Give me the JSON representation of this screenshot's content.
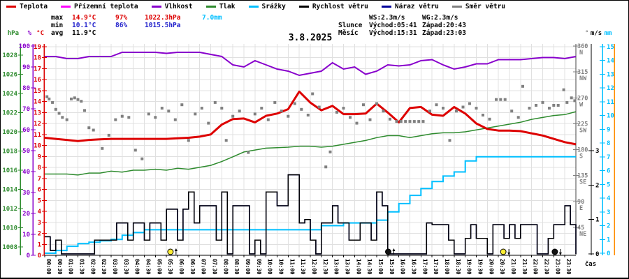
{
  "title": "3.8.2025",
  "colors": {
    "temperature": "#dd0000",
    "ground_temperature": "#ff00ff",
    "humidity": "#8800cc",
    "pressure": "#2e8b2e",
    "precipitation": "#00bfff",
    "wind_speed": "#000000",
    "wind_gust": "#000099",
    "wind_direction": "#808080",
    "grid": "#e0e0e0",
    "axis_orange": "#ff8c00",
    "sun_marker": "#ffee33",
    "moon_marker": "#111111",
    "max_stat": "#dd0000",
    "min_stat": "#2222cc"
  },
  "legend": {
    "items": [
      {
        "key": "temperature",
        "label": "Teplota",
        "color": "#dd0000"
      },
      {
        "key": "ground-temperature",
        "label": "Přízemní teplota",
        "color": "#ff00ff"
      },
      {
        "key": "humidity",
        "label": "Vlhkost",
        "color": "#8800cc"
      },
      {
        "key": "pressure",
        "label": "Tlak",
        "color": "#2e8b2e"
      },
      {
        "key": "precipitation",
        "label": "Srážky",
        "color": "#00bfff"
      },
      {
        "key": "wind-speed",
        "label": "Rychlost větru",
        "color": "#000000"
      },
      {
        "key": "wind-gust",
        "label": "Náraz větru",
        "color": "#000099"
      },
      {
        "key": "wind-direction",
        "label": "Směr větru",
        "color": "#808080"
      }
    ]
  },
  "stats": {
    "max": {
      "label": "max",
      "temp": "14.9°C",
      "rh": "97%",
      "pressure": "1022.3hPa",
      "precip": "7.0mm"
    },
    "min": {
      "label": "min",
      "temp": "10.1°C",
      "rh": "86%",
      "pressure": "1015.5hPa"
    },
    "avg": {
      "label": "avg",
      "temp": "11.9°C"
    },
    "wind": {
      "ws": "WS:2.3m/s",
      "wg": "WG:2.3m/s"
    },
    "sun": {
      "label": "Slunce",
      "rise": "Východ:05:41",
      "set": "Západ:20:43"
    },
    "moon": {
      "label": "Měsíc",
      "rise": "Východ:15:31",
      "set": "Západ:23:03"
    }
  },
  "axes": {
    "pressure": {
      "header": "hPa",
      "ticks": [
        "1008",
        "1010",
        "1012",
        "1014",
        "1016",
        "1018",
        "1020",
        "1022",
        "1024",
        "1026",
        "1028"
      ]
    },
    "humidity": {
      "header": "%",
      "ticks": [
        "0",
        "10",
        "20",
        "30",
        "40",
        "50",
        "60",
        "70",
        "80",
        "90",
        "100"
      ]
    },
    "temperature": {
      "header": "°C",
      "ticks": [
        "0",
        "1",
        "2",
        "3",
        "4",
        "5",
        "6",
        "7",
        "8",
        "9",
        "10",
        "11",
        "12",
        "13",
        "14",
        "15",
        "16",
        "17",
        "18",
        "19"
      ]
    },
    "direction": {
      "header": "°",
      "ticks": [
        {
          "value": 360,
          "label": "360",
          "compass": "N"
        },
        {
          "value": 315,
          "label": "315",
          "compass": "NW"
        },
        {
          "value": 270,
          "label": "270",
          "compass": "W"
        },
        {
          "value": 225,
          "label": "225",
          "compass": "SW"
        },
        {
          "value": 180,
          "label": "180",
          "compass": "S"
        },
        {
          "value": 135,
          "label": "135",
          "compass": "SE"
        },
        {
          "value": 90,
          "label": "90",
          "compass": "E"
        },
        {
          "value": 45,
          "label": "45",
          "compass": "NE"
        }
      ]
    },
    "wind": {
      "header": "m/s",
      "ticks": [
        "0",
        "1",
        "2",
        "3"
      ]
    },
    "rain": {
      "header": "mm",
      "ticks": [
        "0",
        "1",
        "2",
        "3",
        "4",
        "5",
        "6",
        "7",
        "8",
        "9",
        "10",
        "11",
        "12",
        "13",
        "14",
        "15"
      ]
    },
    "x": {
      "label": "čas",
      "ticks": [
        "00:00",
        "00:30",
        "01:00",
        "01:30",
        "02:00",
        "02:30",
        "03:00",
        "03:30",
        "04:00",
        "04:30",
        "05:00",
        "05:30",
        "06:00",
        "06:30",
        "07:00",
        "07:30",
        "08:00",
        "08:30",
        "09:00",
        "09:30",
        "10:00",
        "10:30",
        "11:00",
        "11:30",
        "12:00",
        "12:30",
        "13:00",
        "13:30",
        "14:00",
        "14:30",
        "15:00",
        "15:30",
        "16:00",
        "16:30",
        "17:00",
        "17:30",
        "18:00",
        "18:30",
        "19:00",
        "19:30",
        "20:00",
        "20:30",
        "21:00",
        "21:30",
        "22:00",
        "22:30",
        "23:00",
        "23:30"
      ]
    }
  },
  "chart_data": {
    "type": "line",
    "title": "3.8.2025",
    "x_unit": "hours",
    "x_range": [
      0,
      24
    ],
    "axis_ranges": {
      "temperature_c": [
        0,
        19
      ],
      "humidity_pct": [
        0,
        100
      ],
      "pressure_hpa": [
        1008,
        1028
      ],
      "direction_deg": [
        0,
        360
      ],
      "wind_ms": [
        0,
        3
      ],
      "rain_mm": [
        0,
        15
      ]
    },
    "grid": true,
    "step_hours": 0.5,
    "series": [
      {
        "name": "Teplota",
        "unit": "°C",
        "axis": "temperature_c",
        "values": [
          10.7,
          10.6,
          10.5,
          10.4,
          10.5,
          10.55,
          10.6,
          10.6,
          10.6,
          10.6,
          10.6,
          10.6,
          10.65,
          10.7,
          10.8,
          11.0,
          11.9,
          12.4,
          12.45,
          12.1,
          12.7,
          12.9,
          13.3,
          14.9,
          13.9,
          13.2,
          13.6,
          12.85,
          12.85,
          12.9,
          13.8,
          13.0,
          12.1,
          13.4,
          13.5,
          12.8,
          12.7,
          13.5,
          12.9,
          12.0,
          11.5,
          11.35,
          11.35,
          11.3,
          11.1,
          10.9,
          10.6,
          10.3,
          10.1
        ]
      },
      {
        "name": "Vlhkost",
        "unit": "%",
        "axis": "humidity_pct",
        "values": [
          95,
          95,
          94,
          94,
          95,
          95,
          95,
          97,
          97,
          97,
          97,
          96.5,
          97,
          97,
          97,
          96,
          95,
          91,
          90,
          93,
          91,
          89,
          88,
          86,
          87,
          88,
          92,
          89,
          90,
          86.5,
          88,
          91,
          90.5,
          91,
          93,
          93.5,
          91,
          89,
          90,
          91.5,
          91.5,
          93.5,
          93.5,
          93.5,
          94,
          94.5,
          94.5,
          94,
          95
        ]
      },
      {
        "name": "Tlak",
        "unit": "hPa",
        "axis": "pressure_hpa",
        "values": [
          1015.6,
          1015.6,
          1015.6,
          1015.5,
          1015.7,
          1015.7,
          1015.9,
          1015.8,
          1016.0,
          1016.0,
          1016.1,
          1016.0,
          1016.2,
          1016.1,
          1016.3,
          1016.5,
          1016.9,
          1017.4,
          1017.9,
          1018.1,
          1018.3,
          1018.35,
          1018.4,
          1018.5,
          1018.5,
          1018.4,
          1018.5,
          1018.7,
          1018.9,
          1019.1,
          1019.4,
          1019.6,
          1019.6,
          1019.4,
          1019.6,
          1019.8,
          1019.9,
          1019.9,
          1020.0,
          1020.2,
          1020.4,
          1020.6,
          1020.8,
          1021.0,
          1021.3,
          1021.5,
          1021.7,
          1021.8,
          1022.1
        ]
      },
      {
        "name": "Srážky",
        "unit": "mm",
        "axis": "rain_mm",
        "style": "step",
        "values": [
          0,
          0.2,
          0.5,
          0.7,
          0.8,
          0.9,
          1.0,
          1.3,
          1.5,
          1.7,
          1.7,
          1.7,
          1.7,
          1.7,
          1.7,
          1.7,
          1.7,
          1.7,
          1.7,
          1.7,
          1.7,
          1.7,
          1.7,
          1.7,
          1.7,
          2.0,
          2.0,
          2.2,
          2.2,
          2.2,
          2.4,
          3.0,
          3.6,
          4.2,
          4.7,
          5.2,
          5.6,
          5.9,
          6.7,
          7.0,
          7.0,
          7.0,
          7.0,
          7.0,
          7.0,
          7.0,
          7.0,
          7.0,
          7.0
        ]
      },
      {
        "name": "Rychlost větru",
        "unit": "m/s",
        "axis": "wind_ms",
        "style": "step",
        "step_hours": 0.25,
        "values": [
          0.5,
          0.1,
          0.4,
          0,
          0,
          0,
          0,
          0,
          0,
          0.4,
          0.4,
          0.4,
          0.4,
          0.9,
          0.9,
          0.4,
          0.9,
          0.9,
          0.4,
          0.9,
          0.9,
          0.4,
          1.3,
          1.3,
          0.4,
          1.3,
          1.8,
          0.9,
          1.4,
          1.4,
          1.4,
          0.4,
          1.8,
          0,
          1.4,
          1.4,
          1.4,
          0,
          0.4,
          0,
          1.8,
          1.8,
          1.4,
          1.4,
          2.3,
          2.3,
          0.9,
          1.0,
          0.4,
          0,
          0.9,
          0.9,
          1.4,
          0.9,
          0.9,
          0.4,
          0.4,
          0.9,
          0.9,
          0.4,
          1.8,
          1.4,
          0,
          0,
          0,
          0,
          0,
          0,
          0,
          0.9,
          0.85,
          0.85,
          0.85,
          0.4,
          0,
          0,
          0.45,
          0.85,
          0.45,
          0.45,
          0,
          0.85,
          0.85,
          0.45,
          0.85,
          0.45,
          0.85,
          0.85,
          0.85,
          0,
          0,
          0.45,
          0.85,
          0.85,
          1.4,
          0.85,
          0
        ]
      },
      {
        "name": "Směr větru",
        "unit": "°",
        "axis": "direction_deg",
        "style": "scatter",
        "points": [
          [
            0.1,
            272
          ],
          [
            0.2,
            268
          ],
          [
            0.35,
            262
          ],
          [
            0.5,
            250
          ],
          [
            0.65,
            243
          ],
          [
            0.8,
            236
          ],
          [
            1.0,
            232
          ],
          [
            1.2,
            268
          ],
          [
            1.35,
            270
          ],
          [
            1.5,
            267
          ],
          [
            1.65,
            264
          ],
          [
            1.8,
            248
          ],
          [
            2.0,
            218
          ],
          [
            2.2,
            214
          ],
          [
            2.6,
            182
          ],
          [
            2.9,
            205
          ],
          [
            3.2,
            232
          ],
          [
            3.5,
            238
          ],
          [
            3.8,
            236
          ],
          [
            4.1,
            179
          ],
          [
            4.4,
            164
          ],
          [
            4.7,
            242
          ],
          [
            5.0,
            236
          ],
          [
            5.3,
            252
          ],
          [
            5.6,
            247
          ],
          [
            5.9,
            232
          ],
          [
            6.2,
            258
          ],
          [
            6.5,
            196
          ],
          [
            6.8,
            242
          ],
          [
            7.1,
            252
          ],
          [
            7.4,
            226
          ],
          [
            7.7,
            262
          ],
          [
            8.0,
            252
          ],
          [
            8.2,
            196
          ],
          [
            8.5,
            238
          ],
          [
            8.8,
            247
          ],
          [
            9.2,
            175
          ],
          [
            9.5,
            242
          ],
          [
            9.8,
            252
          ],
          [
            10.1,
            232
          ],
          [
            10.4,
            262
          ],
          [
            10.7,
            247
          ],
          [
            11.0,
            238
          ],
          [
            11.3,
            260
          ],
          [
            11.6,
            250
          ],
          [
            11.9,
            240
          ],
          [
            12.1,
            277
          ],
          [
            12.4,
            254
          ],
          [
            12.7,
            150
          ],
          [
            12.9,
            176
          ],
          [
            13.2,
            245
          ],
          [
            13.5,
            252
          ],
          [
            13.8,
            236
          ],
          [
            14.1,
            226
          ],
          [
            14.4,
            258
          ],
          [
            14.7,
            232
          ],
          [
            15.0,
            260
          ],
          [
            15.3,
            247
          ],
          [
            15.6,
            233
          ],
          [
            15.9,
            229
          ],
          [
            16.1,
            229
          ],
          [
            16.3,
            229
          ],
          [
            16.5,
            229
          ],
          [
            16.7,
            229
          ],
          [
            16.9,
            229
          ],
          [
            17.1,
            229
          ],
          [
            17.4,
            247
          ],
          [
            17.7,
            258
          ],
          [
            18.0,
            252
          ],
          [
            18.3,
            196
          ],
          [
            18.6,
            247
          ],
          [
            18.9,
            254
          ],
          [
            19.2,
            260
          ],
          [
            19.5,
            252
          ],
          [
            19.8,
            240
          ],
          [
            20.1,
            233
          ],
          [
            20.4,
            267
          ],
          [
            20.6,
            267
          ],
          [
            20.8,
            267
          ],
          [
            21.1,
            247
          ],
          [
            21.4,
            236
          ],
          [
            21.6,
            290
          ],
          [
            21.9,
            252
          ],
          [
            22.2,
            257
          ],
          [
            22.5,
            262
          ],
          [
            22.8,
            252
          ],
          [
            23.0,
            257
          ],
          [
            23.2,
            257
          ],
          [
            23.45,
            284
          ],
          [
            23.6,
            262
          ],
          [
            23.8,
            270
          ],
          [
            23.95,
            265
          ]
        ]
      }
    ],
    "wind_gust_visible": false,
    "markers": [
      {
        "t": 5.68,
        "body": "sun",
        "event": "rise"
      },
      {
        "t": 15.52,
        "body": "moon",
        "event": "rise"
      },
      {
        "t": 20.72,
        "body": "sun",
        "event": "set"
      },
      {
        "t": 23.05,
        "body": "moon",
        "event": "set"
      }
    ]
  }
}
